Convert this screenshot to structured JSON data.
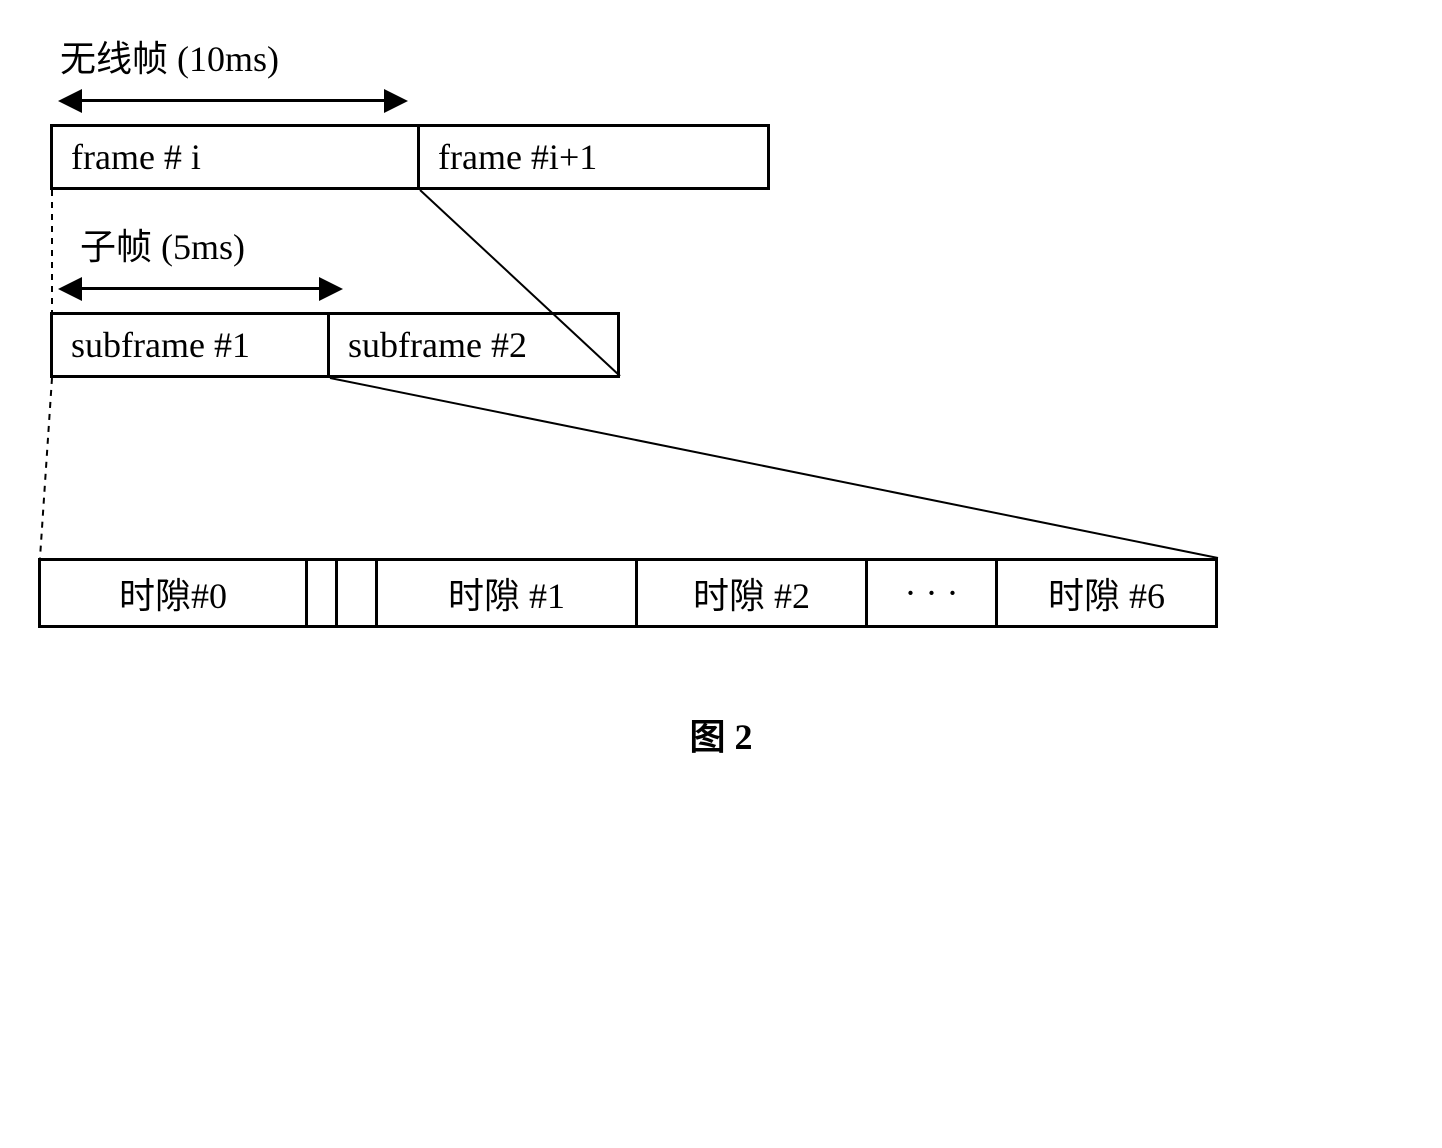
{
  "frame_label": "无线帧 (10ms)",
  "subframe_label": "子帧 (5ms)",
  "frames": {
    "f1": "frame  # i",
    "f2": "frame  #i+1"
  },
  "subframes": {
    "s1": "subframe #1",
    "s2": "subframe  #2"
  },
  "slots": {
    "s0": "时隙#0",
    "s1": "时隙 #1",
    "s2": "时隙 #2",
    "dots": "· · ·",
    "s6": "时隙 #6"
  },
  "caption": "图 2",
  "layout": {
    "frame_arrow_width": 350,
    "frame_box_w1": 370,
    "frame_box_w2": 350,
    "subframe_arrow_width": 285,
    "subframe_box_w1": 280,
    "subframe_box_w2": 290,
    "slot_w0": 270,
    "slot_gap1": 30,
    "slot_gap2": 40,
    "slot_w1": 260,
    "slot_w2": 230,
    "slot_dots": 130,
    "slot_w6": 220
  },
  "colors": {
    "stroke": "#000000",
    "bg": "#ffffff"
  }
}
